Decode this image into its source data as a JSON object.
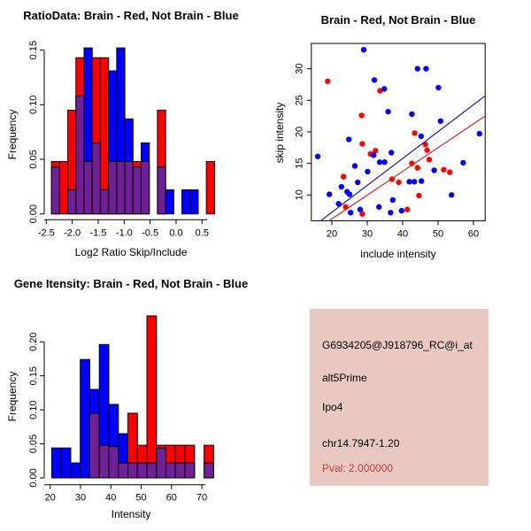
{
  "figure": {
    "description_labels": {
      "red_group": "Brain",
      "blue_group": "Not Brain"
    }
  },
  "colors": {
    "brain_red": "#FF0000",
    "not_brain_blue": "#0000FF",
    "overlap_purple": "#702096",
    "regression_red": "#C42A2A",
    "regression_blue": "#1A1A90",
    "axis_black": "#000000",
    "panel_pink": "#E9C8C1",
    "pval_red": "#CC3B3B"
  },
  "chart_data": [
    {
      "id": "ratio_histogram",
      "type": "bar",
      "title": "RatioData: Brain - Red, Not Brain - Blue",
      "xlabel": "Log2 Ratio Skip/Include",
      "ylabel": "Frequency",
      "xticks": [
        -2.5,
        -2.0,
        -1.5,
        -1.0,
        -0.5,
        0.0,
        0.5
      ],
      "xtick_labels": [
        "-2.5",
        "-2.0",
        "-1.5",
        "-1.0",
        "-0.5",
        "0.0",
        "0.5"
      ],
      "yticks": [
        0,
        0.05,
        0.1,
        0.15
      ],
      "ytick_labels": [
        "0.00",
        "0.05",
        "0.10",
        "0.15"
      ],
      "xlim": [
        -2.55,
        0.85
      ],
      "ylim": [
        0,
        0.155
      ],
      "bin_width": 0.157,
      "legend": {
        "red": "Brain",
        "blue": "Not Brain"
      },
      "bars": [
        {
          "x": -2.4,
          "red": 0.048,
          "blue": 0.043
        },
        {
          "x": -2.243,
          "red": 0.048,
          "blue": 0
        },
        {
          "x": -2.086,
          "red": 0.095,
          "blue": 0.022
        },
        {
          "x": -1.929,
          "red": 0.143,
          "blue": 0.108
        },
        {
          "x": -1.772,
          "red": 0.048,
          "blue": 0.152
        },
        {
          "x": -1.615,
          "red": 0.143,
          "blue": 0.065
        },
        {
          "x": -1.458,
          "red": 0.143,
          "blue": 0.022
        },
        {
          "x": -1.301,
          "red": 0.048,
          "blue": 0.131
        },
        {
          "x": -1.144,
          "red": 0.048,
          "blue": 0.152
        },
        {
          "x": -0.987,
          "red": 0.048,
          "blue": 0.087
        },
        {
          "x": -0.83,
          "red": 0.048,
          "blue": 0.043
        },
        {
          "x": -0.673,
          "red": 0.048,
          "blue": 0.065
        },
        {
          "x": -0.359,
          "red": 0.095,
          "blue": 0.043
        },
        {
          "x": -0.202,
          "red": 0,
          "blue": 0.022
        },
        {
          "x": 0.112,
          "red": 0,
          "blue": 0.022
        },
        {
          "x": 0.269,
          "red": 0,
          "blue": 0.022
        },
        {
          "x": 0.583,
          "red": 0.048,
          "blue": 0
        }
      ]
    },
    {
      "id": "skip_include_scatter",
      "type": "scatter",
      "title": "Brain - Red, Not Brain - Blue",
      "xlabel": "include intensity",
      "ylabel": "skip intensity",
      "xticks": [
        20,
        30,
        40,
        50,
        60
      ],
      "xtick_labels": [
        "20",
        "30",
        "40",
        "50",
        "60"
      ],
      "yticks": [
        10,
        15,
        20,
        25,
        30
      ],
      "ytick_labels": [
        "10",
        "15",
        "20",
        "25",
        "30"
      ],
      "xlim": [
        14.2,
        63.3
      ],
      "ylim": [
        5.9,
        34.0
      ],
      "series": [
        {
          "name": "Brain",
          "color_key": "brain_red",
          "points": [
            [
              18.8,
              28
            ],
            [
              33.6,
              26.5
            ],
            [
              28.4,
              22.6
            ],
            [
              43.4,
              19.8
            ],
            [
              28.6,
              18.1
            ],
            [
              46.4,
              18.0
            ],
            [
              46.9,
              17.1
            ],
            [
              32.3,
              17.0
            ],
            [
              30.9,
              16.5
            ],
            [
              42.6,
              15.0
            ],
            [
              47.5,
              15.6
            ],
            [
              44.2,
              14.3
            ],
            [
              51.6,
              14.0
            ],
            [
              53.3,
              13.6
            ],
            [
              23.3,
              12.9
            ],
            [
              37.0,
              12.5
            ],
            [
              38.9,
              12.0
            ],
            [
              44.6,
              9.9
            ],
            [
              23.9,
              8.1
            ],
            [
              28.6,
              7.0
            ],
            [
              41.3,
              7.7
            ]
          ]
        },
        {
          "name": "Not Brain",
          "color_key": "not_brain_blue",
          "points": [
            [
              29,
              33
            ],
            [
              44.2,
              30
            ],
            [
              46.6,
              30
            ],
            [
              32,
              28.2
            ],
            [
              34.8,
              26.8
            ],
            [
              50.1,
              27
            ],
            [
              35.9,
              23.2
            ],
            [
              42.6,
              22.8
            ],
            [
              50.7,
              21.7
            ],
            [
              61.7,
              19.7
            ],
            [
              24.8,
              18.8
            ],
            [
              45.2,
              19.3
            ],
            [
              16,
              16.1
            ],
            [
              36.8,
              16.7
            ],
            [
              31.8,
              16.3
            ],
            [
              33.5,
              15.2
            ],
            [
              34.9,
              15.2
            ],
            [
              26.5,
              14.6
            ],
            [
              30.1,
              13.7
            ],
            [
              57.1,
              15.1
            ],
            [
              48.9,
              13.9
            ],
            [
              27.3,
              12.0
            ],
            [
              41.9,
              12.1
            ],
            [
              43.3,
              12.1
            ],
            [
              45.3,
              12.2
            ],
            [
              22.7,
              11.3
            ],
            [
              25.0,
              10.1
            ],
            [
              24.3,
              10.5
            ],
            [
              19.3,
              10.1
            ],
            [
              53.8,
              10.0
            ],
            [
              37.2,
              9.2
            ],
            [
              21.9,
              8.6
            ],
            [
              33.3,
              8.1
            ],
            [
              25.3,
              7.2
            ],
            [
              28.0,
              7.7
            ],
            [
              36.6,
              7.2
            ],
            [
              39.7,
              7.5
            ]
          ]
        }
      ],
      "fit_lines": [
        {
          "name": "brain-fit-line",
          "color_key": "regression_red",
          "x1": 19.2,
          "y1": 5.9,
          "x2": 63.3,
          "y2": 22.5
        },
        {
          "name": "not-brain-fit-line",
          "color_key": "regression_blue",
          "x1": 16.8,
          "y1": 5.9,
          "x2": 63.3,
          "y2": 25.7
        }
      ]
    },
    {
      "id": "gene_intensity_histogram",
      "type": "bar",
      "title": "Gene Itensity: Brain - Red, Not Brain - Blue",
      "xlabel": "Intensity",
      "ylabel": "Frequency",
      "xticks": [
        20,
        30,
        40,
        50,
        60,
        70
      ],
      "xtick_labels": [
        "20",
        "30",
        "40",
        "50",
        "60",
        "70"
      ],
      "yticks": [
        0,
        0.05,
        0.1,
        0.15,
        0.2
      ],
      "ytick_labels": [
        "0.00",
        "0.05",
        "0.10",
        "0.15",
        "0.20"
      ],
      "xlim": [
        19,
        75
      ],
      "ylim": [
        0,
        0.245
      ],
      "bin_width": 3.14,
      "legend": {
        "red": "Brain",
        "blue": "Not Brain"
      },
      "bars": [
        {
          "x": 20.5,
          "red": 0,
          "blue": 0.044
        },
        {
          "x": 23.64,
          "red": 0,
          "blue": 0.044
        },
        {
          "x": 26.78,
          "red": 0,
          "blue": 0.022
        },
        {
          "x": 29.92,
          "red": 0,
          "blue": 0.174
        },
        {
          "x": 33.06,
          "red": 0.095,
          "blue": 0.13
        },
        {
          "x": 36.2,
          "red": 0.048,
          "blue": 0.196
        },
        {
          "x": 39.34,
          "red": 0.046,
          "blue": 0.108
        },
        {
          "x": 42.48,
          "red": 0.022,
          "blue": 0.065
        },
        {
          "x": 45.62,
          "red": 0.095,
          "blue": 0.022
        },
        {
          "x": 48.76,
          "red": 0.048,
          "blue": 0.022
        },
        {
          "x": 51.9,
          "red": 0.238,
          "blue": 0.022
        },
        {
          "x": 55.04,
          "red": 0.048,
          "blue": 0.044
        },
        {
          "x": 58.18,
          "red": 0.048,
          "blue": 0.022
        },
        {
          "x": 61.32,
          "red": 0.048,
          "blue": 0.022
        },
        {
          "x": 64.46,
          "red": 0.048,
          "blue": 0.022
        },
        {
          "x": 70.74,
          "red": 0.048,
          "blue": 0.022
        }
      ]
    }
  ],
  "info_panel": {
    "lines": [
      {
        "text": "G6934205@J918796_RC@i_at",
        "color": "#000000"
      },
      {
        "text": "alt5Prime",
        "color": "#000000"
      },
      {
        "text": "Ipo4",
        "color": "#000000"
      },
      {
        "text": "chr14.7947-1.20",
        "color": "#000000"
      },
      {
        "text": "Pval: 2.000000",
        "color": "#CC3B3B"
      }
    ]
  }
}
